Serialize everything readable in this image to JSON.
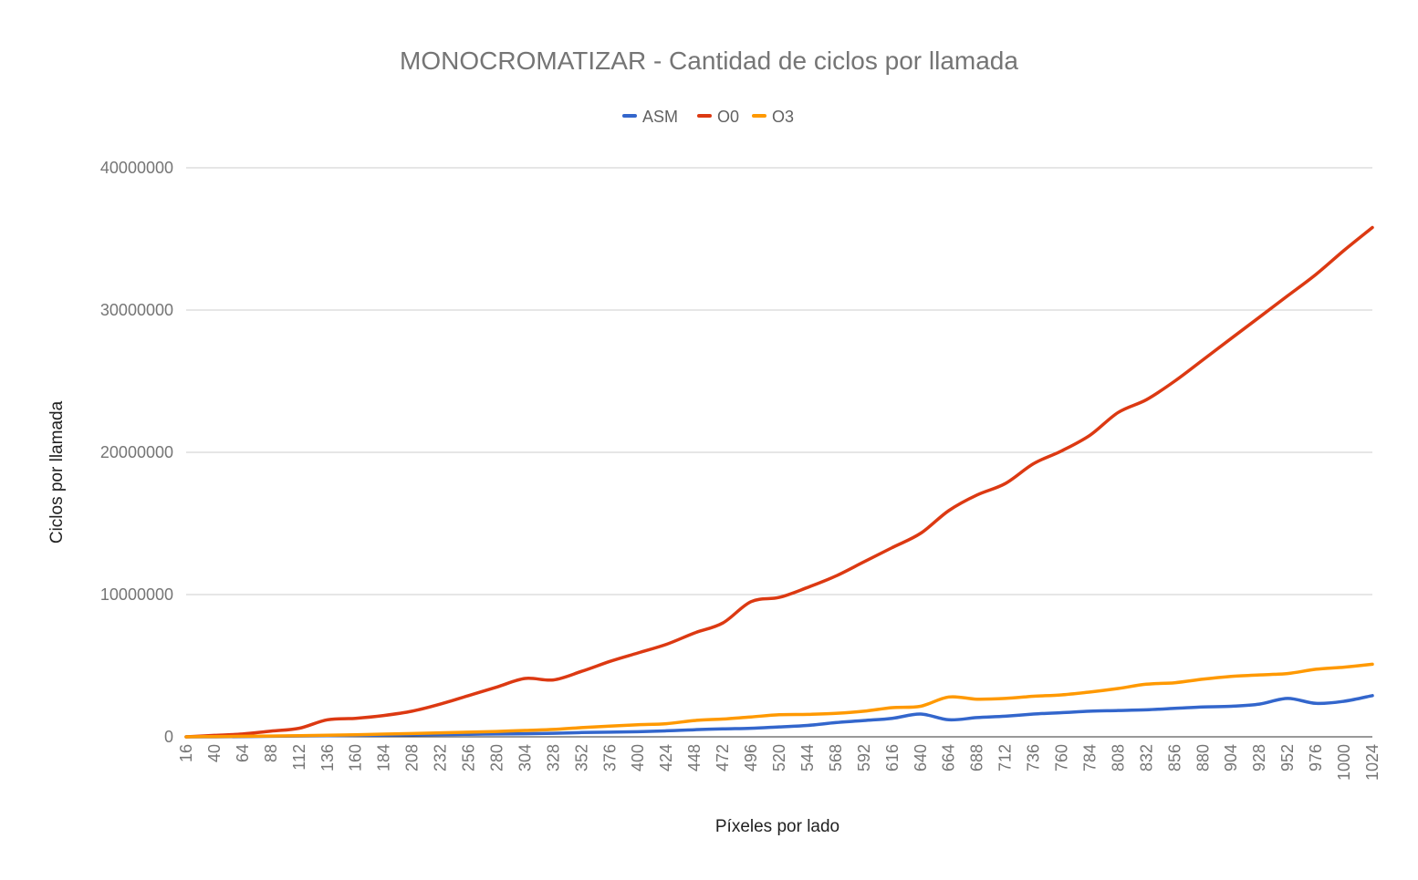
{
  "chart_data": {
    "type": "line",
    "title": "MONOCROMATIZAR - Cantidad de ciclos por llamada",
    "xlabel": "Píxeles por lado",
    "ylabel": "Ciclos por llamada",
    "ylim": [
      0,
      40000000
    ],
    "yticks": [
      "0",
      "10000000",
      "20000000",
      "30000000",
      "40000000"
    ],
    "xtick_labels": [
      "16",
      "40",
      "64",
      "88",
      "112",
      "136",
      "160",
      "184",
      "208",
      "232",
      "256",
      "280",
      "304",
      "328",
      "352",
      "376",
      "400",
      "424",
      "448",
      "472",
      "496",
      "520",
      "544",
      "568",
      "592",
      "616",
      "640",
      "664",
      "688",
      "712",
      "736",
      "760",
      "784",
      "808",
      "832",
      "856",
      "880",
      "904",
      "928",
      "952",
      "976",
      "1000",
      "1024"
    ],
    "legend_position": "top",
    "grid": true,
    "x": [
      16,
      40,
      64,
      88,
      112,
      136,
      160,
      184,
      208,
      232,
      256,
      280,
      304,
      328,
      352,
      376,
      400,
      424,
      448,
      472,
      496,
      520,
      544,
      568,
      592,
      616,
      640,
      664,
      688,
      712,
      736,
      760,
      784,
      808,
      832,
      856,
      880,
      904,
      928,
      952,
      976,
      1000,
      1024
    ],
    "series": [
      {
        "name": "ASM",
        "color": "#3366cc",
        "values": [
          0,
          0,
          20000,
          40000,
          60000,
          80000,
          100000,
          120000,
          140000,
          160000,
          180000,
          200000,
          220000,
          250000,
          300000,
          330000,
          360000,
          420000,
          500000,
          560000,
          600000,
          700000,
          800000,
          1000000,
          1150000,
          1300000,
          1600000,
          1200000,
          1350000,
          1450000,
          1600000,
          1700000,
          1800000,
          1850000,
          1900000,
          2000000,
          2100000,
          2150000,
          2300000,
          2700000,
          2350000,
          2500000,
          2900000
        ]
      },
      {
        "name": "O0",
        "color": "#dc3912",
        "values": [
          0,
          100000,
          200000,
          400000,
          600000,
          1200000,
          1300000,
          1500000,
          1800000,
          2300000,
          2900000,
          3500000,
          4100000,
          4000000,
          4600000,
          5300000,
          5900000,
          6500000,
          7300000,
          8000000,
          9500000,
          9800000,
          10500000,
          11300000,
          12300000,
          13300000,
          14300000,
          15900000,
          17000000,
          17800000,
          19200000,
          20100000,
          21200000,
          22800000,
          23700000,
          25000000,
          26500000,
          28000000,
          29500000,
          31000000,
          32500000,
          34200000,
          35800000
        ]
      },
      {
        "name": "O3",
        "color": "#ff9900",
        "values": [
          0,
          20000,
          40000,
          60000,
          80000,
          110000,
          150000,
          190000,
          230000,
          280000,
          330000,
          380000,
          450000,
          520000,
          650000,
          750000,
          850000,
          920000,
          1150000,
          1250000,
          1400000,
          1550000,
          1580000,
          1650000,
          1800000,
          2050000,
          2150000,
          2800000,
          2650000,
          2700000,
          2850000,
          2950000,
          3150000,
          3400000,
          3700000,
          3800000,
          4050000,
          4250000,
          4350000,
          4450000,
          4750000,
          4900000,
          5100000
        ]
      }
    ]
  }
}
